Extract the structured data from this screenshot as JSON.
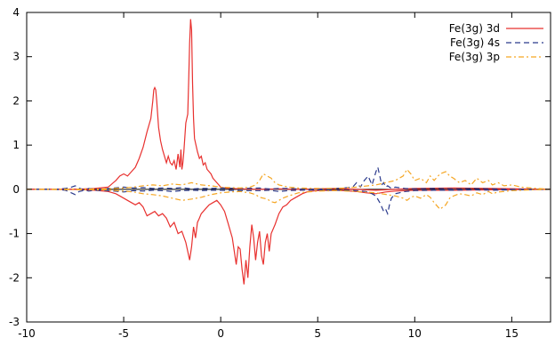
{
  "chart_data": {
    "type": "line",
    "title": "",
    "xlabel": "",
    "ylabel": "",
    "xlim": [
      -10,
      17
    ],
    "ylim": [
      -3,
      4
    ],
    "xticks": [
      -10,
      -5,
      0,
      5,
      10,
      15
    ],
    "yticks": [
      -3,
      -2,
      -1,
      0,
      1,
      2,
      3,
      4
    ],
    "grid": false,
    "legend_position": "top-right",
    "series": [
      {
        "name": "Fe(3g) 3d",
        "color": "#e8312f",
        "style": "solid",
        "branches": [
          {
            "x": [
              -10,
              -7.5,
              -6.5,
              -5.8,
              -5.4,
              -5.2,
              -5.0,
              -4.8,
              -4.6,
              -4.4,
              -4.2,
              -4.0,
              -3.8,
              -3.6,
              -3.5,
              -3.45,
              -3.4,
              -3.35,
              -3.3,
              -3.2,
              -3.1,
              -3.0,
              -2.9,
              -2.8,
              -2.7,
              -2.6,
              -2.5,
              -2.4,
              -2.3,
              -2.2,
              -2.1,
              -2.05,
              -2.0,
              -1.95,
              -1.9,
              -1.8,
              -1.7,
              -1.65,
              -1.6,
              -1.55,
              -1.5,
              -1.45,
              -1.4,
              -1.35,
              -1.3,
              -1.2,
              -1.1,
              -1.0,
              -0.9,
              -0.8,
              -0.7,
              -0.6,
              -0.5,
              -0.4,
              -0.3,
              -0.2,
              -0.1,
              0.0,
              0.2,
              0.5,
              1.0,
              2.0,
              3.0,
              4.0,
              6.0,
              8.0,
              10.0,
              12.0,
              14.0,
              17.0
            ],
            "y": [
              0,
              0,
              0.02,
              0.05,
              0.2,
              0.3,
              0.35,
              0.3,
              0.4,
              0.5,
              0.7,
              0.95,
              1.3,
              1.6,
              2.0,
              2.25,
              2.3,
              2.25,
              2.0,
              1.4,
              1.1,
              0.9,
              0.75,
              0.6,
              0.75,
              0.6,
              0.55,
              0.65,
              0.45,
              0.8,
              0.5,
              0.9,
              0.45,
              0.6,
              0.85,
              1.5,
              1.7,
              2.5,
              3.3,
              3.85,
              3.6,
              2.4,
              1.6,
              1.15,
              1.05,
              0.85,
              0.7,
              0.75,
              0.55,
              0.6,
              0.45,
              0.4,
              0.35,
              0.25,
              0.2,
              0.15,
              0.1,
              0.05,
              0.03,
              0.02,
              0.01,
              0,
              0.01,
              0,
              0.02,
              -0.02,
              0.02,
              0.03,
              0.02,
              0
            ]
          },
          {
            "x": [
              -10,
              -7.5,
              -6.5,
              -5.8,
              -5.4,
              -5.2,
              -5.0,
              -4.8,
              -4.6,
              -4.4,
              -4.2,
              -4.0,
              -3.8,
              -3.6,
              -3.4,
              -3.2,
              -3.0,
              -2.8,
              -2.6,
              -2.4,
              -2.2,
              -2.0,
              -1.8,
              -1.6,
              -1.5,
              -1.4,
              -1.3,
              -1.2,
              -1.1,
              -1.0,
              -0.8,
              -0.6,
              -0.4,
              -0.2,
              0.0,
              0.2,
              0.4,
              0.6,
              0.8,
              0.9,
              1.0,
              1.1,
              1.2,
              1.3,
              1.4,
              1.5,
              1.6,
              1.7,
              1.8,
              1.9,
              2.0,
              2.1,
              2.2,
              2.3,
              2.4,
              2.5,
              2.6,
              2.8,
              3.0,
              3.2,
              3.4,
              3.6,
              3.8,
              4.0,
              4.2,
              4.5,
              5.0,
              6.0,
              7.0,
              7.5,
              8.0,
              8.5,
              9.0,
              10.0,
              12.0,
              14.0,
              17.0
            ],
            "y": [
              0,
              0,
              -0.02,
              -0.05,
              -0.1,
              -0.15,
              -0.2,
              -0.25,
              -0.3,
              -0.35,
              -0.3,
              -0.4,
              -0.6,
              -0.55,
              -0.5,
              -0.6,
              -0.55,
              -0.65,
              -0.85,
              -0.75,
              -1.0,
              -0.95,
              -1.2,
              -1.6,
              -1.3,
              -0.85,
              -1.1,
              -0.75,
              -0.65,
              -0.55,
              -0.45,
              -0.35,
              -0.3,
              -0.25,
              -0.35,
              -0.5,
              -0.8,
              -1.1,
              -1.7,
              -1.3,
              -1.35,
              -1.8,
              -2.15,
              -1.6,
              -2.0,
              -1.3,
              -0.8,
              -1.1,
              -1.6,
              -1.2,
              -0.95,
              -1.5,
              -1.7,
              -1.2,
              -1.0,
              -1.4,
              -1.0,
              -0.8,
              -0.55,
              -0.4,
              -0.35,
              -0.25,
              -0.2,
              -0.15,
              -0.1,
              -0.05,
              -0.03,
              -0.02,
              -0.05,
              -0.08,
              -0.1,
              -0.06,
              -0.04,
              -0.02,
              -0.02,
              -0.01,
              0
            ]
          }
        ]
      },
      {
        "name": "Fe(3g) 4s",
        "color": "#2b3a8c",
        "style": "dashed",
        "branches": [
          {
            "x": [
              -10,
              -8.5,
              -8.0,
              -7.7,
              -7.5,
              -7.3,
              -7.0,
              -6.8,
              -6.5,
              -6.0,
              -5.5,
              -5.0,
              -4.5,
              -4.0,
              -3.5,
              -3.0,
              -2.5,
              -2.0,
              -1.5,
              -1.0,
              -0.5,
              0.0,
              1.0,
              2.0,
              2.5,
              3.0,
              3.5,
              4.0,
              5.0,
              6.0,
              6.8,
              7.0,
              7.2,
              7.4,
              7.6,
              7.8,
              8.0,
              8.1,
              8.2,
              8.3,
              8.4,
              8.5,
              8.6,
              8.8,
              9.0,
              9.5,
              10.0,
              11.0,
              12.0,
              13.0,
              14.0,
              15.0,
              17.0
            ],
            "y": [
              0,
              0,
              0.02,
              0.05,
              0.08,
              0.03,
              -0.02,
              0.02,
              0.0,
              0.01,
              0.03,
              0.05,
              0.03,
              0.04,
              0.02,
              0.03,
              0.02,
              0.04,
              0.01,
              0.02,
              0.02,
              0.03,
              0.02,
              0.03,
              0.01,
              0.02,
              0.02,
              0.01,
              0.0,
              0.02,
              0.05,
              0.15,
              0.05,
              0.2,
              0.3,
              0.1,
              0.4,
              0.5,
              0.3,
              0.1,
              0.15,
              0.05,
              0.08,
              0.02,
              0.05,
              0.02,
              0.01,
              0.02,
              0.01,
              0.02,
              0.01,
              0.0,
              0
            ]
          },
          {
            "x": [
              -10,
              -8.5,
              -8.0,
              -7.7,
              -7.5,
              -7.3,
              -7.0,
              -6.8,
              -6.5,
              -6.0,
              -5.5,
              -5.0,
              -4.5,
              -4.0,
              -3.5,
              -3.0,
              -2.5,
              -2.0,
              -1.5,
              -1.0,
              -0.5,
              0.0,
              1.0,
              2.0,
              2.5,
              3.0,
              3.5,
              4.0,
              5.0,
              6.0,
              7.0,
              7.5,
              7.8,
              8.0,
              8.2,
              8.3,
              8.4,
              8.5,
              8.6,
              8.7,
              8.8,
              9.0,
              9.5,
              10.0,
              11.0,
              12.0,
              13.0,
              14.0,
              15.0,
              17.0
            ],
            "y": [
              0,
              0,
              -0.02,
              -0.08,
              -0.12,
              -0.05,
              -0.02,
              -0.04,
              -0.02,
              -0.03,
              -0.04,
              -0.06,
              -0.03,
              -0.04,
              -0.02,
              -0.03,
              -0.05,
              -0.03,
              -0.02,
              -0.03,
              -0.02,
              -0.02,
              -0.03,
              -0.03,
              -0.02,
              -0.05,
              -0.03,
              -0.02,
              -0.01,
              -0.02,
              -0.03,
              -0.05,
              -0.1,
              -0.15,
              -0.3,
              -0.4,
              -0.5,
              -0.45,
              -0.55,
              -0.35,
              -0.2,
              -0.1,
              -0.05,
              -0.03,
              -0.02,
              -0.02,
              -0.01,
              -0.02,
              -0.01,
              0
            ]
          }
        ]
      },
      {
        "name": "Fe(3g) 3p",
        "color": "#f5a623",
        "style": "dashdot",
        "branches": [
          {
            "x": [
              -10,
              -6.0,
              -5.0,
              -4.5,
              -4.0,
              -3.5,
              -3.0,
              -2.5,
              -2.0,
              -1.5,
              -1.0,
              -0.5,
              0.0,
              0.5,
              1.0,
              1.5,
              1.8,
              2.0,
              2.2,
              2.4,
              2.6,
              2.8,
              3.0,
              3.2,
              3.5,
              4.0,
              5.0,
              6.0,
              7.0,
              8.0,
              9.0,
              9.4,
              9.6,
              9.8,
              10.0,
              10.3,
              10.6,
              10.8,
              11.0,
              11.3,
              11.6,
              11.8,
              12.0,
              12.3,
              12.6,
              12.9,
              13.2,
              13.5,
              13.8,
              14.0,
              14.3,
              14.6,
              15.0,
              15.5,
              16.0,
              17.0
            ],
            "y": [
              0,
              0.01,
              0.03,
              0.05,
              0.08,
              0.1,
              0.08,
              0.12,
              0.1,
              0.15,
              0.1,
              0.08,
              0.05,
              0.04,
              0.03,
              0.05,
              0.1,
              0.2,
              0.35,
              0.3,
              0.25,
              0.15,
              0.1,
              0.08,
              0.05,
              0.03,
              0.02,
              0.02,
              0.05,
              0.1,
              0.2,
              0.3,
              0.45,
              0.35,
              0.2,
              0.25,
              0.15,
              0.3,
              0.2,
              0.35,
              0.4,
              0.3,
              0.25,
              0.15,
              0.2,
              0.1,
              0.25,
              0.15,
              0.2,
              0.1,
              0.15,
              0.08,
              0.1,
              0.05,
              0.03,
              0
            ]
          },
          {
            "x": [
              -10,
              -6.0,
              -5.0,
              -4.5,
              -4.0,
              -3.5,
              -3.0,
              -2.5,
              -2.0,
              -1.5,
              -1.0,
              -0.5,
              0.0,
              0.5,
              1.0,
              1.5,
              1.8,
              2.0,
              2.2,
              2.4,
              2.6,
              2.8,
              3.0,
              3.2,
              3.5,
              4.0,
              5.0,
              6.0,
              7.0,
              8.0,
              9.0,
              9.4,
              9.6,
              9.8,
              10.0,
              10.3,
              10.6,
              10.8,
              11.0,
              11.3,
              11.6,
              11.8,
              12.0,
              12.3,
              12.6,
              12.9,
              13.2,
              13.5,
              13.8,
              14.0,
              14.3,
              14.6,
              15.0,
              15.5,
              16.0,
              17.0
            ],
            "y": [
              0,
              -0.01,
              -0.04,
              -0.06,
              -0.1,
              -0.12,
              -0.15,
              -0.2,
              -0.25,
              -0.22,
              -0.18,
              -0.12,
              -0.08,
              -0.06,
              -0.05,
              -0.08,
              -0.12,
              -0.18,
              -0.2,
              -0.22,
              -0.28,
              -0.3,
              -0.25,
              -0.2,
              -0.15,
              -0.08,
              -0.04,
              -0.03,
              -0.05,
              -0.08,
              -0.15,
              -0.2,
              -0.25,
              -0.18,
              -0.15,
              -0.2,
              -0.12,
              -0.18,
              -0.3,
              -0.45,
              -0.35,
              -0.2,
              -0.15,
              -0.1,
              -0.12,
              -0.15,
              -0.08,
              -0.12,
              -0.05,
              -0.1,
              -0.06,
              -0.05,
              -0.03,
              -0.02,
              -0.01,
              0
            ]
          }
        ]
      }
    ]
  }
}
